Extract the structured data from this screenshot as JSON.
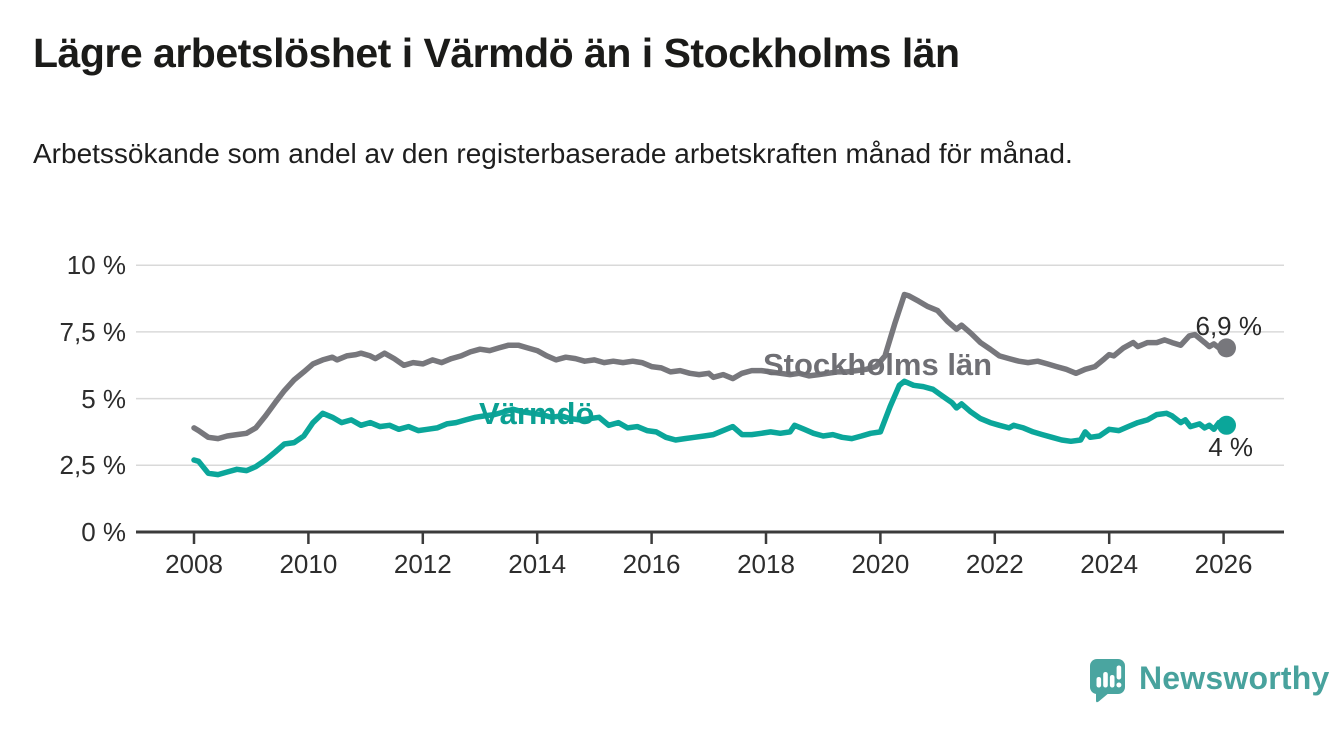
{
  "header": {
    "title": "Lägre arbetslöshet i Värmdö än i Stockholms län",
    "subtitle": "Arbetssökande som andel av den registerbaserade arbetskraften månad för månad."
  },
  "chart_data": {
    "type": "line",
    "title": "Lägre arbetslöshet i Värmdö än i Stockholms län",
    "subtitle": "Arbetssökande som andel av den registerbaserade arbetskraften månad för månad.",
    "xlabel": "",
    "ylabel": "",
    "ylim": [
      0,
      10
    ],
    "xlim": [
      2007,
      2027
    ],
    "grid": "horizontal",
    "legend_position": "inline-labels",
    "y_ticks": [
      {
        "value": 10,
        "label": "10 %"
      },
      {
        "value": 7.5,
        "label": "7,5 %"
      },
      {
        "value": 5,
        "label": "5 %"
      },
      {
        "value": 2.5,
        "label": "2,5 %"
      },
      {
        "value": 0,
        "label": "0 %"
      }
    ],
    "x_ticks": [
      {
        "value": 2008,
        "label": "2008"
      },
      {
        "value": 2010,
        "label": "2010"
      },
      {
        "value": 2012,
        "label": "2012"
      },
      {
        "value": 2014,
        "label": "2014"
      },
      {
        "value": 2016,
        "label": "2016"
      },
      {
        "value": 2018,
        "label": "2018"
      },
      {
        "value": 2020,
        "label": "2020"
      },
      {
        "value": 2022,
        "label": "2022"
      },
      {
        "value": 2024,
        "label": "2024"
      },
      {
        "value": 2026,
        "label": "2026"
      }
    ],
    "series": [
      {
        "id": "stockholms-lan",
        "name": "Stockholms län",
        "color": "#77777c",
        "end_label": "6,9 %",
        "end_value": 6.9,
        "points": [
          [
            2008.0,
            3.9
          ],
          [
            2008.08,
            3.8
          ],
          [
            2008.25,
            3.55
          ],
          [
            2008.42,
            3.5
          ],
          [
            2008.58,
            3.6
          ],
          [
            2008.75,
            3.65
          ],
          [
            2008.92,
            3.7
          ],
          [
            2009.08,
            3.9
          ],
          [
            2009.25,
            4.35
          ],
          [
            2009.42,
            4.85
          ],
          [
            2009.58,
            5.3
          ],
          [
            2009.75,
            5.7
          ],
          [
            2009.92,
            6.0
          ],
          [
            2010.08,
            6.3
          ],
          [
            2010.25,
            6.45
          ],
          [
            2010.42,
            6.55
          ],
          [
            2010.5,
            6.45
          ],
          [
            2010.67,
            6.6
          ],
          [
            2010.83,
            6.65
          ],
          [
            2010.92,
            6.7
          ],
          [
            2011.08,
            6.6
          ],
          [
            2011.17,
            6.5
          ],
          [
            2011.33,
            6.7
          ],
          [
            2011.5,
            6.5
          ],
          [
            2011.67,
            6.25
          ],
          [
            2011.83,
            6.35
          ],
          [
            2012.0,
            6.3
          ],
          [
            2012.17,
            6.45
          ],
          [
            2012.33,
            6.35
          ],
          [
            2012.5,
            6.5
          ],
          [
            2012.67,
            6.6
          ],
          [
            2012.83,
            6.75
          ],
          [
            2013.0,
            6.85
          ],
          [
            2013.17,
            6.8
          ],
          [
            2013.33,
            6.9
          ],
          [
            2013.5,
            7.0
          ],
          [
            2013.67,
            7.0
          ],
          [
            2013.83,
            6.9
          ],
          [
            2014.0,
            6.8
          ],
          [
            2014.17,
            6.6
          ],
          [
            2014.33,
            6.45
          ],
          [
            2014.5,
            6.55
          ],
          [
            2014.67,
            6.5
          ],
          [
            2014.83,
            6.4
          ],
          [
            2015.0,
            6.45
          ],
          [
            2015.17,
            6.35
          ],
          [
            2015.33,
            6.4
          ],
          [
            2015.5,
            6.35
          ],
          [
            2015.67,
            6.4
          ],
          [
            2015.83,
            6.35
          ],
          [
            2016.0,
            6.2
          ],
          [
            2016.17,
            6.15
          ],
          [
            2016.33,
            6.0
          ],
          [
            2016.5,
            6.05
          ],
          [
            2016.67,
            5.95
          ],
          [
            2016.83,
            5.9
          ],
          [
            2017.0,
            5.95
          ],
          [
            2017.08,
            5.8
          ],
          [
            2017.25,
            5.9
          ],
          [
            2017.42,
            5.75
          ],
          [
            2017.58,
            5.95
          ],
          [
            2017.75,
            6.05
          ],
          [
            2017.92,
            6.05
          ],
          [
            2018.08,
            6.0
          ],
          [
            2018.25,
            5.95
          ],
          [
            2018.42,
            5.9
          ],
          [
            2018.58,
            5.95
          ],
          [
            2018.75,
            5.85
          ],
          [
            2018.92,
            5.9
          ],
          [
            2019.08,
            5.95
          ],
          [
            2019.25,
            6.0
          ],
          [
            2019.42,
            6.0
          ],
          [
            2019.58,
            6.05
          ],
          [
            2019.75,
            6.1
          ],
          [
            2019.92,
            6.2
          ],
          [
            2020.08,
            6.6
          ],
          [
            2020.25,
            7.8
          ],
          [
            2020.42,
            8.9
          ],
          [
            2020.5,
            8.85
          ],
          [
            2020.67,
            8.65
          ],
          [
            2020.83,
            8.45
          ],
          [
            2021.0,
            8.3
          ],
          [
            2021.17,
            7.9
          ],
          [
            2021.33,
            7.6
          ],
          [
            2021.42,
            7.75
          ],
          [
            2021.58,
            7.45
          ],
          [
            2021.75,
            7.1
          ],
          [
            2021.92,
            6.85
          ],
          [
            2022.08,
            6.6
          ],
          [
            2022.25,
            6.5
          ],
          [
            2022.42,
            6.4
          ],
          [
            2022.58,
            6.35
          ],
          [
            2022.75,
            6.4
          ],
          [
            2022.92,
            6.3
          ],
          [
            2023.08,
            6.2
          ],
          [
            2023.25,
            6.1
          ],
          [
            2023.42,
            5.95
          ],
          [
            2023.58,
            6.1
          ],
          [
            2023.75,
            6.2
          ],
          [
            2023.92,
            6.5
          ],
          [
            2024.0,
            6.65
          ],
          [
            2024.08,
            6.6
          ],
          [
            2024.25,
            6.9
          ],
          [
            2024.42,
            7.1
          ],
          [
            2024.5,
            6.95
          ],
          [
            2024.67,
            7.1
          ],
          [
            2024.83,
            7.1
          ],
          [
            2024.97,
            7.2
          ],
          [
            2025.1,
            7.1
          ],
          [
            2025.25,
            7.0
          ],
          [
            2025.4,
            7.35
          ],
          [
            2025.5,
            7.4
          ],
          [
            2025.67,
            7.1
          ],
          [
            2025.75,
            6.95
          ],
          [
            2025.83,
            7.05
          ],
          [
            2025.92,
            6.9
          ],
          [
            2026.05,
            6.9
          ]
        ]
      },
      {
        "id": "varmdo",
        "name": "Värmdö",
        "color": "#0ba69a",
        "end_label": "4 %",
        "end_value": 4.0,
        "points": [
          [
            2008.0,
            2.7
          ],
          [
            2008.08,
            2.65
          ],
          [
            2008.25,
            2.2
          ],
          [
            2008.42,
            2.15
          ],
          [
            2008.58,
            2.25
          ],
          [
            2008.75,
            2.35
          ],
          [
            2008.92,
            2.3
          ],
          [
            2009.08,
            2.45
          ],
          [
            2009.25,
            2.7
          ],
          [
            2009.42,
            3.0
          ],
          [
            2009.58,
            3.3
          ],
          [
            2009.75,
            3.35
          ],
          [
            2009.92,
            3.6
          ],
          [
            2010.08,
            4.1
          ],
          [
            2010.25,
            4.45
          ],
          [
            2010.42,
            4.3
          ],
          [
            2010.58,
            4.1
          ],
          [
            2010.75,
            4.2
          ],
          [
            2010.92,
            4.0
          ],
          [
            2011.08,
            4.1
          ],
          [
            2011.25,
            3.95
          ],
          [
            2011.42,
            4.0
          ],
          [
            2011.58,
            3.85
          ],
          [
            2011.75,
            3.95
          ],
          [
            2011.92,
            3.8
          ],
          [
            2012.08,
            3.85
          ],
          [
            2012.25,
            3.9
          ],
          [
            2012.42,
            4.05
          ],
          [
            2012.58,
            4.1
          ],
          [
            2012.75,
            4.2
          ],
          [
            2012.92,
            4.3
          ],
          [
            2013.08,
            4.35
          ],
          [
            2013.25,
            4.4
          ],
          [
            2013.42,
            4.5
          ],
          [
            2013.58,
            4.6
          ],
          [
            2013.75,
            4.5
          ],
          [
            2013.92,
            4.45
          ],
          [
            2014.08,
            4.4
          ],
          [
            2014.25,
            4.3
          ],
          [
            2014.42,
            4.35
          ],
          [
            2014.58,
            4.25
          ],
          [
            2014.75,
            4.2
          ],
          [
            2014.92,
            4.25
          ],
          [
            2015.08,
            4.3
          ],
          [
            2015.25,
            4.0
          ],
          [
            2015.42,
            4.1
          ],
          [
            2015.58,
            3.9
          ],
          [
            2015.75,
            3.95
          ],
          [
            2015.92,
            3.8
          ],
          [
            2016.08,
            3.75
          ],
          [
            2016.25,
            3.55
          ],
          [
            2016.42,
            3.45
          ],
          [
            2016.58,
            3.5
          ],
          [
            2016.75,
            3.55
          ],
          [
            2016.92,
            3.6
          ],
          [
            2017.08,
            3.65
          ],
          [
            2017.25,
            3.8
          ],
          [
            2017.42,
            3.95
          ],
          [
            2017.58,
            3.65
          ],
          [
            2017.75,
            3.65
          ],
          [
            2017.92,
            3.7
          ],
          [
            2018.08,
            3.75
          ],
          [
            2018.25,
            3.7
          ],
          [
            2018.42,
            3.75
          ],
          [
            2018.5,
            4.0
          ],
          [
            2018.67,
            3.85
          ],
          [
            2018.83,
            3.7
          ],
          [
            2019.0,
            3.6
          ],
          [
            2019.17,
            3.65
          ],
          [
            2019.33,
            3.55
          ],
          [
            2019.5,
            3.5
          ],
          [
            2019.67,
            3.6
          ],
          [
            2019.83,
            3.7
          ],
          [
            2020.0,
            3.75
          ],
          [
            2020.17,
            4.7
          ],
          [
            2020.33,
            5.5
          ],
          [
            2020.42,
            5.65
          ],
          [
            2020.58,
            5.5
          ],
          [
            2020.75,
            5.45
          ],
          [
            2020.92,
            5.35
          ],
          [
            2021.08,
            5.1
          ],
          [
            2021.25,
            4.85
          ],
          [
            2021.33,
            4.65
          ],
          [
            2021.42,
            4.8
          ],
          [
            2021.58,
            4.5
          ],
          [
            2021.75,
            4.25
          ],
          [
            2021.92,
            4.1
          ],
          [
            2022.08,
            4.0
          ],
          [
            2022.25,
            3.9
          ],
          [
            2022.33,
            4.0
          ],
          [
            2022.5,
            3.9
          ],
          [
            2022.67,
            3.75
          ],
          [
            2022.83,
            3.65
          ],
          [
            2023.0,
            3.55
          ],
          [
            2023.17,
            3.45
          ],
          [
            2023.33,
            3.4
          ],
          [
            2023.5,
            3.45
          ],
          [
            2023.58,
            3.75
          ],
          [
            2023.67,
            3.55
          ],
          [
            2023.83,
            3.6
          ],
          [
            2024.0,
            3.85
          ],
          [
            2024.17,
            3.8
          ],
          [
            2024.33,
            3.95
          ],
          [
            2024.5,
            4.1
          ],
          [
            2024.67,
            4.2
          ],
          [
            2024.83,
            4.4
          ],
          [
            2025.0,
            4.45
          ],
          [
            2025.1,
            4.35
          ],
          [
            2025.25,
            4.1
          ],
          [
            2025.33,
            4.2
          ],
          [
            2025.42,
            3.95
          ],
          [
            2025.58,
            4.05
          ],
          [
            2025.67,
            3.9
          ],
          [
            2025.75,
            4.0
          ],
          [
            2025.83,
            3.85
          ],
          [
            2025.92,
            4.1
          ],
          [
            2026.05,
            4.0
          ]
        ]
      }
    ]
  },
  "branding": {
    "logo_text": "Newsworthy",
    "logo_color": "#4aa5a0",
    "text_color": "#48a29d"
  },
  "colors": {
    "background": "#ffffff",
    "gridline": "#d9d9d9",
    "axis": "#3b3b3b",
    "tick_text": "#2d2d2d"
  }
}
